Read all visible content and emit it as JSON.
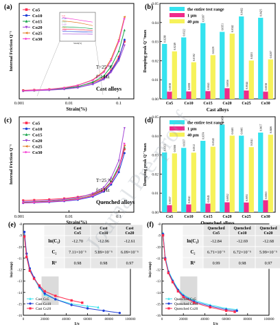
{
  "panels": {
    "a": {
      "tag": "(a)",
      "ylabel": "Internal Friction Q⁻¹",
      "xlabel": "Strain(%)",
      "xticks": [
        "0.001",
        "0.01",
        "0.1"
      ],
      "yticks": [],
      "legend": [
        "Co5",
        "Co10",
        "Co15",
        "Co20",
        "Co25",
        "Co30"
      ],
      "notes": [
        "T=25 °C",
        "f=1 Hz",
        "Cast alloys"
      ],
      "inset_labels": [
        "Co5",
        "Co10",
        "Co15",
        "Co20",
        "Co25",
        "Co30"
      ],
      "inset_xlabel": "Strain(%)"
    },
    "b": {
      "tag": "(b)",
      "ylabel": "Damping peak Q⁻¹max",
      "xlabel": "Cast alloys",
      "yticks": [
        "0.00",
        "0.01",
        "0.02",
        "0.03",
        "0.04",
        "0.05"
      ],
      "legend": [
        "the entire test range",
        "1 μm",
        "40 μm"
      ]
    },
    "c": {
      "tag": "(c)",
      "ylabel": "Internal Friction Q⁻¹",
      "xlabel": "Strain(%)",
      "xticks": [
        "0.001",
        "0.01",
        "0.1"
      ],
      "legend": [
        "Co5",
        "Co10",
        "Co15",
        "Co20",
        "Co25",
        "Co30"
      ],
      "notes": [
        "T=25 °C",
        "f=1 Hz",
        "Quenched alloys"
      ]
    },
    "d": {
      "tag": "(d)",
      "ylabel": "Damping peak Q⁻¹max",
      "xlabel": "Quenched alloys",
      "yticks": [
        "0.00",
        "0.01",
        "0.02",
        "0.03",
        "0.04",
        "0.05"
      ],
      "legend": [
        "the entire test range",
        "1 μm",
        "40 μm"
      ]
    },
    "e": {
      "tag": "(e)",
      "ylabel": "ln(ε/amp)",
      "xlabel": "1/ε",
      "xticks": [
        "0",
        "20000",
        "40000",
        "60000",
        "80000",
        "100000"
      ],
      "yticks": [
        "-8",
        "-9",
        "-10",
        "-11",
        "-12",
        "-13",
        "-14",
        "-15",
        "-16"
      ],
      "legend": [
        "Cast Co5",
        "Cast Co10",
        "Cast Co20"
      ],
      "table": {
        "headers": [
          "",
          "Cast Co5",
          "Cast Co10",
          "Cast Co20"
        ],
        "rows": [
          [
            "ln(C₁)",
            "-12.70",
            "-12.96",
            "-12.61"
          ],
          [
            "C₂",
            "7.11×10⁻⁵",
            "5.89×10⁻⁵",
            "6.09×10⁻⁵"
          ],
          [
            "R²",
            "0.98",
            "0.98",
            "0.97"
          ]
        ]
      }
    },
    "f": {
      "tag": "(f)",
      "ylabel": "ln(ε/amp)",
      "xlabel": "1/ε",
      "xticks": [
        "0",
        "20000",
        "40000",
        "60000",
        "80000",
        "100000"
      ],
      "yticks": [
        "-8",
        "-9",
        "-10",
        "-11",
        "-12",
        "-13",
        "-14",
        "-15",
        "-16"
      ],
      "legend": [
        "Quenched Co5",
        "Quenched Co10",
        "Quenched Co20"
      ],
      "table": {
        "headers": [
          "",
          "Quenched Co5",
          "Quenched Co10",
          "Quenched Co20"
        ],
        "rows": [
          [
            "ln(C₁)",
            "-12.84",
            "-12.69",
            "-12.68"
          ],
          [
            "C₂",
            "6.71×10⁻⁵",
            "6.72×10⁻⁵",
            "5.99×10⁻⁵"
          ],
          [
            "R²",
            "0.99",
            "0.98",
            "0.97"
          ]
        ]
      }
    }
  },
  "watermark": "Journal Pre-proof",
  "colors": {
    "Co5": "#ff2a4d",
    "Co10": "#1f3fd6",
    "Co15": "#17a34a",
    "Co20": "#a347d6",
    "Co25": "#e07b20",
    "Co30": "#f53bd2",
    "cyan": "#35e3ef",
    "red": "#ef2a8a",
    "yellow": "#f6f25a"
  },
  "chart_data": [
    {
      "type": "bar",
      "panel": "b",
      "categories": [
        "Co5",
        "Co10",
        "Co15",
        "Co20",
        "Co25",
        "Co30"
      ],
      "ylim": [
        0,
        0.05
      ],
      "series": [
        {
          "name": "the entire test range",
          "values": [
            0.0288,
            0.0322,
            0.0397,
            0.0351,
            0.0432,
            0.0425
          ]
        },
        {
          "name": "1 μm",
          "values": [
            0.0038,
            0.0039,
            0.0041,
            0.0056,
            0.0044,
            0.0038
          ]
        },
        {
          "name": "40 μm",
          "values": [
            0.0249,
            0.0192,
            0.0229,
            0.0342,
            0.0201,
            0.0207
          ]
        }
      ],
      "labels": [
        [
          "0.0288",
          "0.0322",
          "0.0397",
          "0.0351",
          "0.0432",
          "0.0425"
        ],
        [
          "0.0038",
          "0.0039",
          "0.0041",
          "0.0056",
          "0.0044",
          "0.0038"
        ],
        [
          "0.0249",
          "0.0192",
          "0.0229",
          "0.0342",
          "0.0201",
          "0.0207"
        ]
      ]
    },
    {
      "type": "bar",
      "panel": "d",
      "categories": [
        "Co5",
        "Co10",
        "Co15",
        "Co20",
        "Co25",
        "Co30"
      ],
      "ylim": [
        0,
        0.05
      ],
      "series": [
        {
          "name": "the entire test range",
          "values": [
            0.0313,
            0.0337,
            0.0374,
            0.0459,
            0.0401,
            0.0417
          ]
        },
        {
          "name": "1 μm",
          "values": [
            0.0037,
            0.0041,
            0.0045,
            0.0052,
            0.0051,
            0.0063
          ]
        },
        {
          "name": "40 μm",
          "values": [
            0.0308,
            0.0312,
            0.0343,
            0.0401,
            0.0341,
            0.0406
          ]
        }
      ],
      "labels": [
        [
          "0.0313",
          "0.0337",
          "0.0374",
          "0.0459",
          "0.0401",
          "0.0417"
        ],
        [
          "0.0037",
          "0.0041",
          "0.0045",
          "0.0052",
          "0.0051",
          "0.0063"
        ],
        [
          "0.0308",
          "0.0312",
          "0.0343",
          "0.0401",
          "0.0341",
          "0.0406"
        ]
      ]
    },
    {
      "type": "line",
      "panel": "a",
      "x_scale": "log",
      "xlim": [
        0.001,
        0.2
      ],
      "ylim": [
        0,
        0.05
      ],
      "x": [
        0.0012,
        0.002,
        0.004,
        0.008,
        0.015,
        0.03,
        0.05,
        0.07,
        0.1,
        0.13
      ],
      "series": [
        {
          "name": "Co5",
          "values": [
            0.0045,
            0.0047,
            0.005,
            0.0056,
            0.0065,
            0.0085,
            0.011,
            0.015,
            0.022,
            0.03
          ]
        },
        {
          "name": "Co10",
          "values": [
            0.0042,
            0.0044,
            0.0047,
            0.0052,
            0.006,
            0.0078,
            0.0105,
            0.0145,
            0.021,
            0.031
          ]
        },
        {
          "name": "Co15",
          "values": [
            0.0043,
            0.0045,
            0.0049,
            0.0055,
            0.0064,
            0.0088,
            0.012,
            0.017,
            0.025,
            0.036
          ]
        },
        {
          "name": "Co20",
          "values": [
            0.0041,
            0.0043,
            0.0046,
            0.0051,
            0.0059,
            0.0077,
            0.0102,
            0.014,
            0.02,
            0.028
          ]
        },
        {
          "name": "Co25",
          "values": [
            0.0044,
            0.0046,
            0.0051,
            0.0059,
            0.0072,
            0.01,
            0.0145,
            0.021,
            0.031,
            0.043
          ]
        },
        {
          "name": "Co30",
          "values": [
            0.0043,
            0.0046,
            0.005,
            0.0058,
            0.0071,
            0.0098,
            0.014,
            0.02,
            0.03,
            0.042
          ]
        }
      ]
    },
    {
      "type": "line",
      "panel": "c",
      "x_scale": "log",
      "xlim": [
        0.001,
        0.2
      ],
      "ylim": [
        0,
        0.05
      ],
      "x": [
        0.0012,
        0.002,
        0.004,
        0.008,
        0.015,
        0.03,
        0.05,
        0.07,
        0.1,
        0.13
      ],
      "series": [
        {
          "name": "Co5",
          "values": [
            0.0062,
            0.0064,
            0.0067,
            0.0072,
            0.008,
            0.0095,
            0.012,
            0.016,
            0.023,
            0.033
          ]
        },
        {
          "name": "Co10",
          "values": [
            0.0048,
            0.005,
            0.0053,
            0.0058,
            0.0065,
            0.0082,
            0.0108,
            0.0145,
            0.021,
            0.031
          ]
        },
        {
          "name": "Co15",
          "values": [
            0.0052,
            0.0054,
            0.0058,
            0.0063,
            0.0071,
            0.009,
            0.0118,
            0.016,
            0.024,
            0.034
          ]
        },
        {
          "name": "Co20",
          "values": [
            0.0055,
            0.0057,
            0.0061,
            0.0067,
            0.0076,
            0.0098,
            0.013,
            0.018,
            0.027,
            0.044
          ]
        },
        {
          "name": "Co25",
          "values": [
            0.005,
            0.0052,
            0.0056,
            0.0061,
            0.007,
            0.0088,
            0.0115,
            0.0155,
            0.023,
            0.035
          ]
        },
        {
          "name": "Co30",
          "values": [
            0.0049,
            0.0051,
            0.0055,
            0.006,
            0.0068,
            0.0086,
            0.0113,
            0.0152,
            0.0225,
            0.036
          ]
        }
      ]
    },
    {
      "type": "line",
      "panel": "e",
      "xlim": [
        0,
        100000
      ],
      "ylim": [
        -16,
        -8
      ],
      "series": [
        {
          "name": "Cast Co5",
          "x": [
            1000,
            3000,
            6000,
            10000,
            15000,
            20000,
            30000,
            45000,
            60000,
            70000
          ],
          "values": [
            -9.0,
            -10.8,
            -12.0,
            -12.8,
            -13.6,
            -14.2,
            -14.6,
            -15.0,
            -15.2,
            -15.3
          ]
        },
        {
          "name": "Cast Co10",
          "x": [
            1000,
            3000,
            6000,
            10000,
            15000,
            20000,
            30000,
            45000,
            60000,
            75000,
            90000
          ],
          "values": [
            -8.7,
            -10.6,
            -11.9,
            -12.7,
            -13.5,
            -14.1,
            -14.6,
            -15.1,
            -15.4,
            -15.6,
            -15.8
          ]
        },
        {
          "name": "Cast Co20",
          "x": [
            1000,
            3000,
            6000,
            10000,
            15000,
            20000,
            30000,
            45000,
            55000
          ],
          "values": [
            -9.1,
            -10.9,
            -12.1,
            -12.8,
            -13.4,
            -13.9,
            -14.3,
            -14.7,
            -14.9
          ]
        }
      ]
    },
    {
      "type": "line",
      "panel": "f",
      "xlim": [
        0,
        100000
      ],
      "ylim": [
        -16,
        -8
      ],
      "series": [
        {
          "name": "Quenched Co5",
          "x": [
            1000,
            3000,
            6000,
            10000,
            15000,
            20000,
            30000,
            45000,
            60000,
            70000
          ],
          "values": [
            -8.8,
            -10.9,
            -12.1,
            -12.9,
            -13.7,
            -14.2,
            -14.7,
            -15.1,
            -15.4,
            -15.5
          ]
        },
        {
          "name": "Quenched Co10",
          "x": [
            1000,
            3000,
            6000,
            10000,
            15000,
            20000,
            30000,
            45000,
            60000,
            70000
          ],
          "values": [
            -8.9,
            -11.0,
            -12.2,
            -13.0,
            -13.8,
            -14.3,
            -14.8,
            -15.2,
            -15.5,
            -15.6
          ]
        },
        {
          "name": "Quenched Co20",
          "x": [
            1000,
            3000,
            6000,
            10000,
            15000,
            20000,
            30000,
            45000,
            60000,
            68000
          ],
          "values": [
            -9.0,
            -11.1,
            -12.3,
            -13.1,
            -13.9,
            -14.4,
            -14.9,
            -15.3,
            -15.6,
            -15.7
          ]
        }
      ]
    }
  ]
}
